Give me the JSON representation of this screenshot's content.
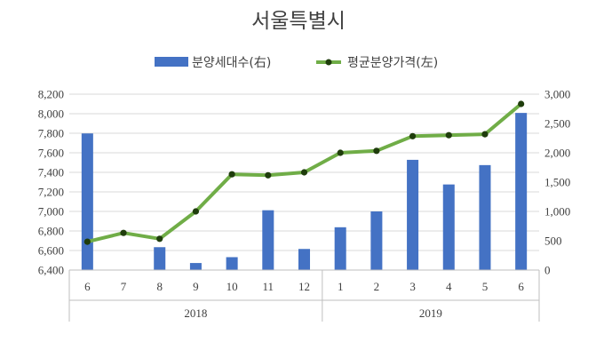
{
  "chart_data": {
    "type": "bar+line",
    "title": "서울특별시",
    "legend": {
      "position": "top",
      "entries": [
        "분양세대수(右)",
        "평균분양가격(左)"
      ]
    },
    "x": {
      "months": [
        "6",
        "7",
        "8",
        "9",
        "10",
        "11",
        "12",
        "1",
        "2",
        "3",
        "4",
        "5",
        "6"
      ],
      "years": [
        {
          "label": "2018",
          "start": 0,
          "end": 6
        },
        {
          "label": "2019",
          "start": 7,
          "end": 12
        }
      ]
    },
    "y_left": {
      "range": [
        6400,
        8200
      ],
      "ticks": [
        "6,400",
        "6,600",
        "6,800",
        "7,000",
        "7,200",
        "7,400",
        "7,600",
        "7,800",
        "8,000",
        "8,200"
      ]
    },
    "y_right": {
      "range": [
        0,
        3000
      ],
      "ticks": [
        "0",
        "500",
        "1,000",
        "1,500",
        "2,000",
        "2,500",
        "3,000"
      ]
    },
    "grid": true,
    "series": [
      {
        "name": "분양세대수(右)",
        "type": "bar",
        "axis": "right",
        "color": "#4472c4",
        "values": [
          2330,
          0,
          390,
          120,
          220,
          1020,
          360,
          730,
          1000,
          1880,
          1460,
          1790,
          2680
        ]
      },
      {
        "name": "평균분양가격(左)",
        "type": "line",
        "axis": "left",
        "color": "#70ad47",
        "marker_color": "#1f3d0c",
        "values": [
          6690,
          6780,
          6720,
          7000,
          7380,
          7370,
          7400,
          7600,
          7620,
          7770,
          7780,
          7790,
          8100
        ]
      }
    ]
  }
}
